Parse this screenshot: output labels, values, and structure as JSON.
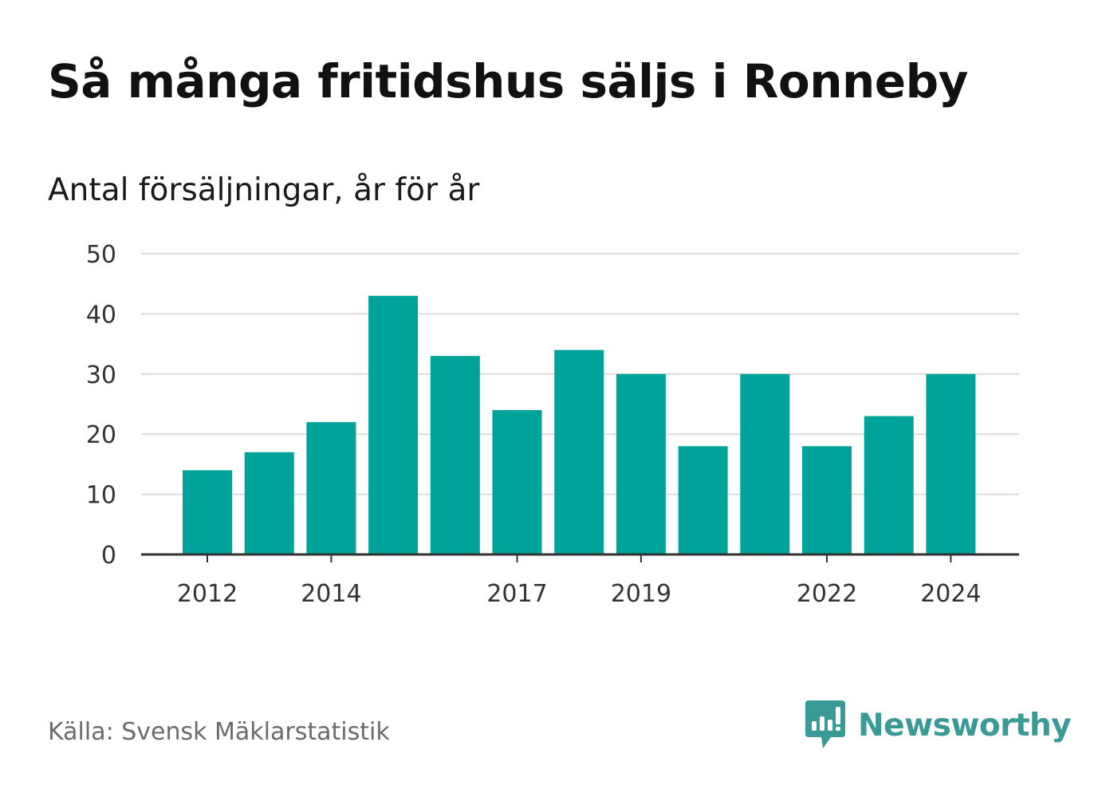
{
  "header": {
    "title": "Så många fritidshus säljs i Ronneby",
    "subtitle": "Antal försäljningar, år för år"
  },
  "footer": {
    "source": "Källa: Svensk Mäklarstatistik",
    "brand": "Newsworthy",
    "brand_icon": "newsworthy-logo-icon"
  },
  "colors": {
    "bar": "#00A39A",
    "grid": "#DDDDDD",
    "axis": "#333333",
    "brand": "#3A9B96"
  },
  "chart_data": {
    "type": "bar",
    "categories": [
      "2012",
      "2013",
      "2014",
      "2015",
      "2016",
      "2017",
      "2018",
      "2019",
      "2020",
      "2021",
      "2022",
      "2023",
      "2024"
    ],
    "values": [
      14,
      17,
      22,
      43,
      33,
      24,
      34,
      30,
      18,
      30,
      18,
      23,
      30
    ],
    "x_tick_labels": [
      "2012",
      "2014",
      "2017",
      "2019",
      "2022",
      "2024"
    ],
    "y_ticks": [
      0,
      10,
      20,
      30,
      40,
      50
    ],
    "ylim": [
      0,
      50
    ],
    "grid": true,
    "legend": "none"
  }
}
